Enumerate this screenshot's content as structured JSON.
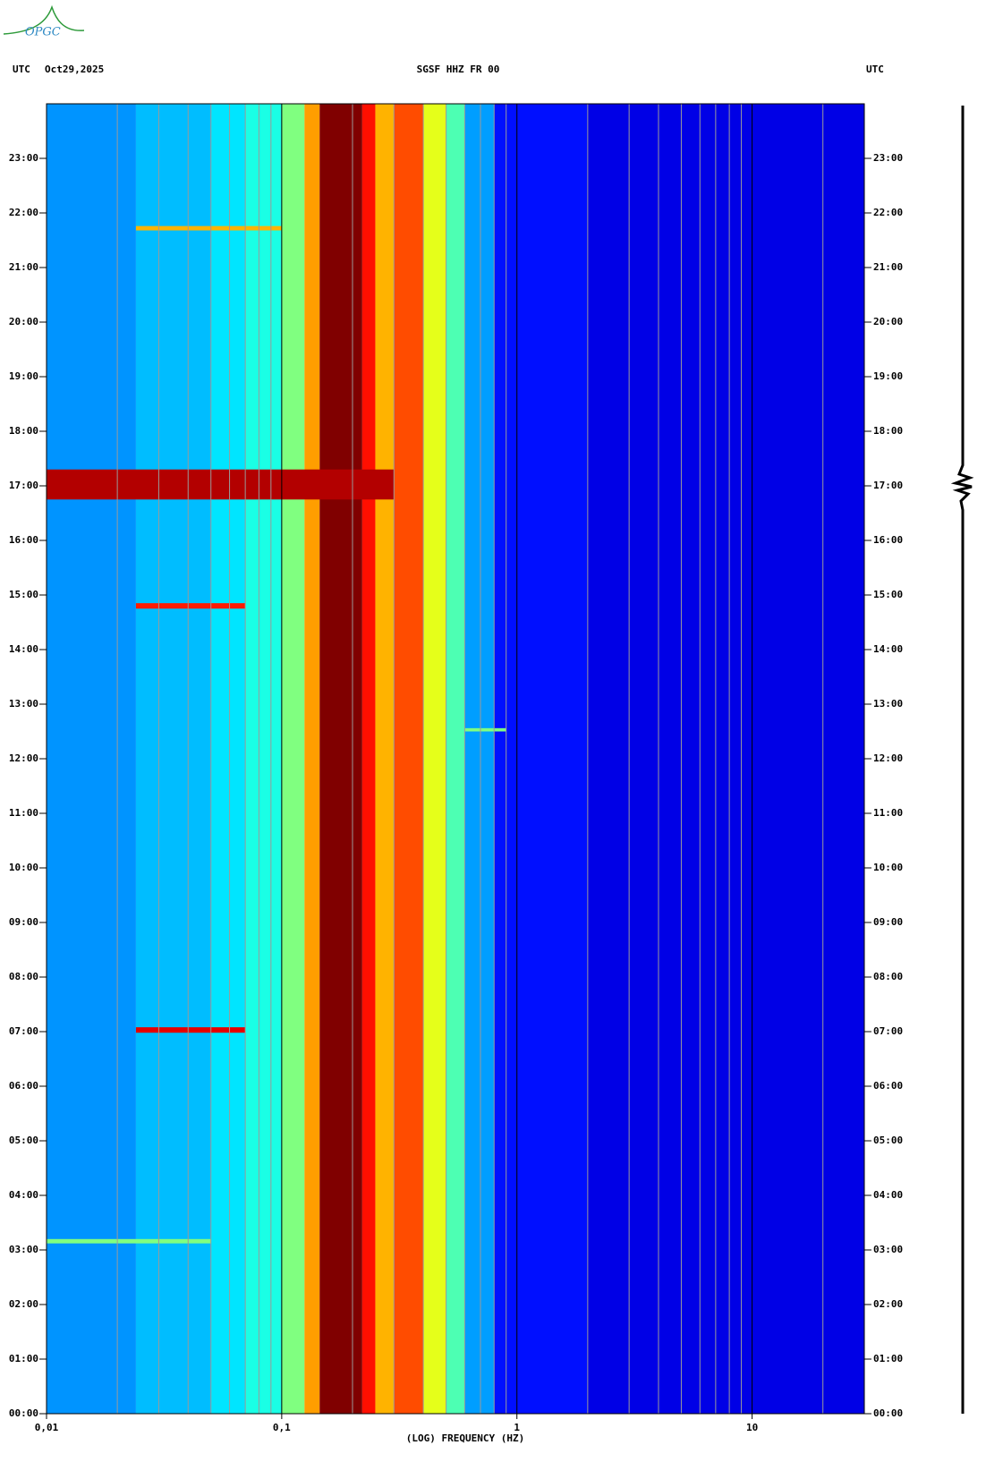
{
  "logo": "OPGC",
  "chart_data": {
    "type": "spectrogram",
    "title": "SGSF HHZ FR 00",
    "left_label": "UTC",
    "date": "Oct29,2025",
    "right_label": "UTC",
    "x_label": "(LOG) FREQUENCY (HZ)",
    "log_x": true,
    "grid": true,
    "xlim": [
      0.01,
      30
    ],
    "xticks": [
      {
        "value": 0.01,
        "label": "0,01"
      },
      {
        "value": 0.1,
        "label": "0,1"
      },
      1,
      10
    ],
    "minor_xticks": [
      0.02,
      0.03,
      0.04,
      0.05,
      0.06,
      0.07,
      0.08,
      0.09,
      0.2,
      0.3,
      0.4,
      0.5,
      0.6,
      0.7,
      0.8,
      0.9,
      2,
      3,
      4,
      5,
      6,
      7,
      8,
      9,
      20
    ],
    "ylim": [
      0,
      24
    ],
    "yticks": [
      {
        "value": 0,
        "label": "00:00"
      },
      {
        "value": 1,
        "label": "01:00"
      },
      {
        "value": 2,
        "label": "02:00"
      },
      {
        "value": 3,
        "label": "03:00"
      },
      {
        "value": 4,
        "label": "04:00"
      },
      {
        "value": 5,
        "label": "05:00"
      },
      {
        "value": 6,
        "label": "06:00"
      },
      {
        "value": 7,
        "label": "07:00"
      },
      {
        "value": 8,
        "label": "08:00"
      },
      {
        "value": 9,
        "label": "09:00"
      },
      {
        "value": 10,
        "label": "10:00"
      },
      {
        "value": 11,
        "label": "11:00"
      },
      {
        "value": 12,
        "label": "12:00"
      },
      {
        "value": 13,
        "label": "13:00"
      },
      {
        "value": 14,
        "label": "14:00"
      },
      {
        "value": 15,
        "label": "15:00"
      },
      {
        "value": 16,
        "label": "16:00"
      },
      {
        "value": 17,
        "label": "17:00"
      },
      {
        "value": 18,
        "label": "18:00"
      },
      {
        "value": 19,
        "label": "19:00"
      },
      {
        "value": 20,
        "label": "20:00"
      },
      {
        "value": 21,
        "label": "21:00"
      },
      {
        "value": 22,
        "label": "22:00"
      },
      {
        "value": 23,
        "label": "23:00"
      }
    ],
    "bins": [
      0.01,
      0.024,
      0.05,
      0.07,
      0.1,
      0.125,
      0.145,
      0.22,
      0.25,
      0.3,
      0.4,
      0.5,
      0.6,
      0.8,
      2,
      30
    ],
    "levels": [
      0.27,
      0.31,
      0.35,
      0.4,
      0.5,
      0.72,
      1.0,
      0.86,
      0.7,
      0.8,
      0.6,
      0.45,
      0.28,
      0.14,
      0.1
    ],
    "events": [
      {
        "time": 16.75,
        "duration": 0.55,
        "fmin": 0.01,
        "fmax": 0.3,
        "level": 0.95
      },
      {
        "time": 6.98,
        "duration": 0.1,
        "fmin": 0.024,
        "fmax": 0.07,
        "level": 0.9
      },
      {
        "time": 14.75,
        "duration": 0.1,
        "fmin": 0.024,
        "fmax": 0.07,
        "level": 0.85
      },
      {
        "time": 21.68,
        "duration": 0.08,
        "fmin": 0.024,
        "fmax": 0.1,
        "level": 0.7
      },
      {
        "time": 12.5,
        "duration": 0.06,
        "fmin": 0.6,
        "fmax": 0.9,
        "level": 0.5
      },
      {
        "time": 3.12,
        "duration": 0.08,
        "fmin": 0.01,
        "fmax": 0.05,
        "level": 0.5
      }
    ]
  }
}
